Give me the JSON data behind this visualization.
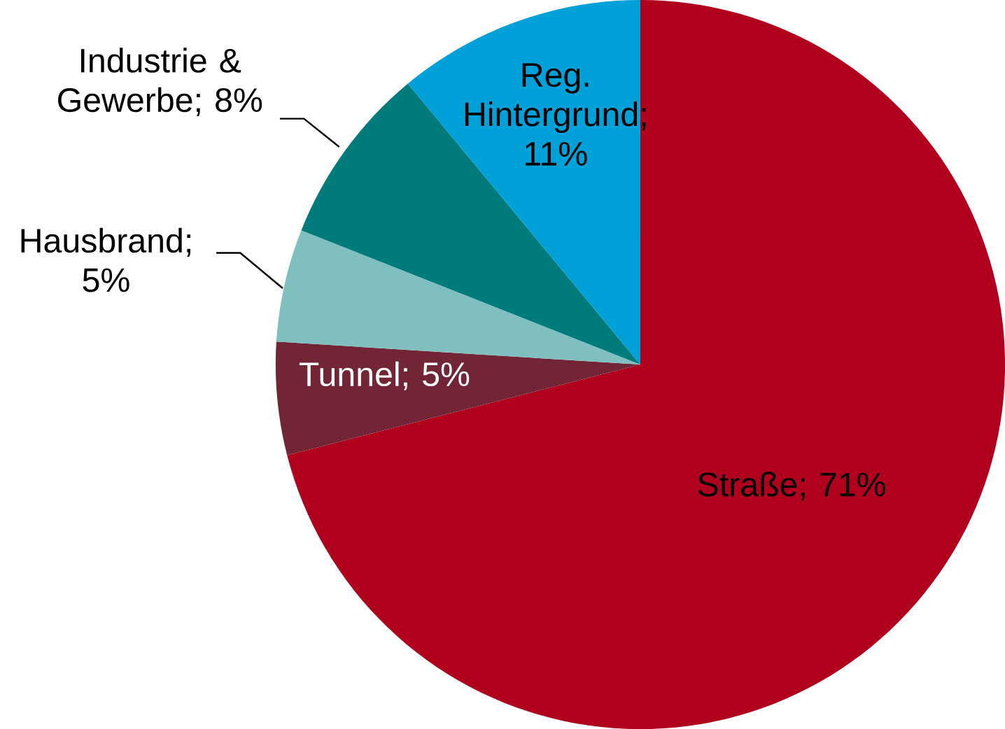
{
  "chart_data": {
    "type": "pie",
    "categories": [
      "Straße",
      "Tunnel",
      "Hausbrand",
      "Industrie & Gewerbe",
      "Reg. Hintergrund"
    ],
    "value_labels": [
      "; 71%",
      "; 5%",
      "; 5%",
      "; 8%",
      "; 11%"
    ],
    "values": [
      71,
      5,
      5,
      8,
      11
    ],
    "colors": [
      "#b0001e",
      "#722535",
      "#7fbfbf",
      "#007b7b",
      "#00a0d8"
    ]
  }
}
